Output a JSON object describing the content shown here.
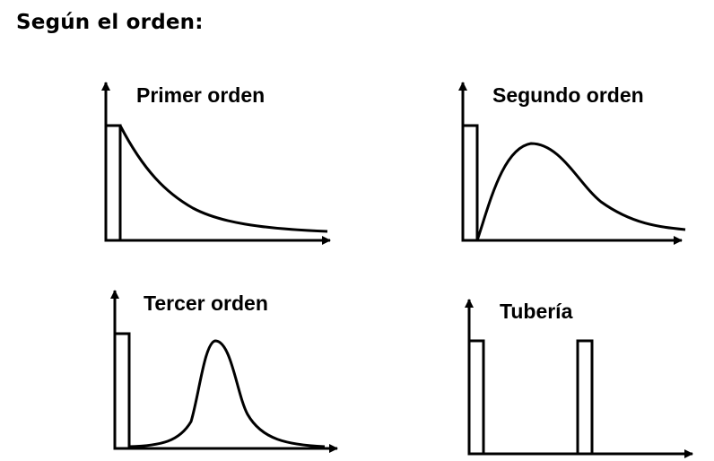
{
  "title": "Según el orden:",
  "panels": [
    {
      "label": "Primer orden"
    },
    {
      "label": "Segundo orden"
    },
    {
      "label": "Tercer orden"
    },
    {
      "label": "Tubería"
    }
  ],
  "colors": {
    "ink": "#000000",
    "background": "#ffffff"
  }
}
